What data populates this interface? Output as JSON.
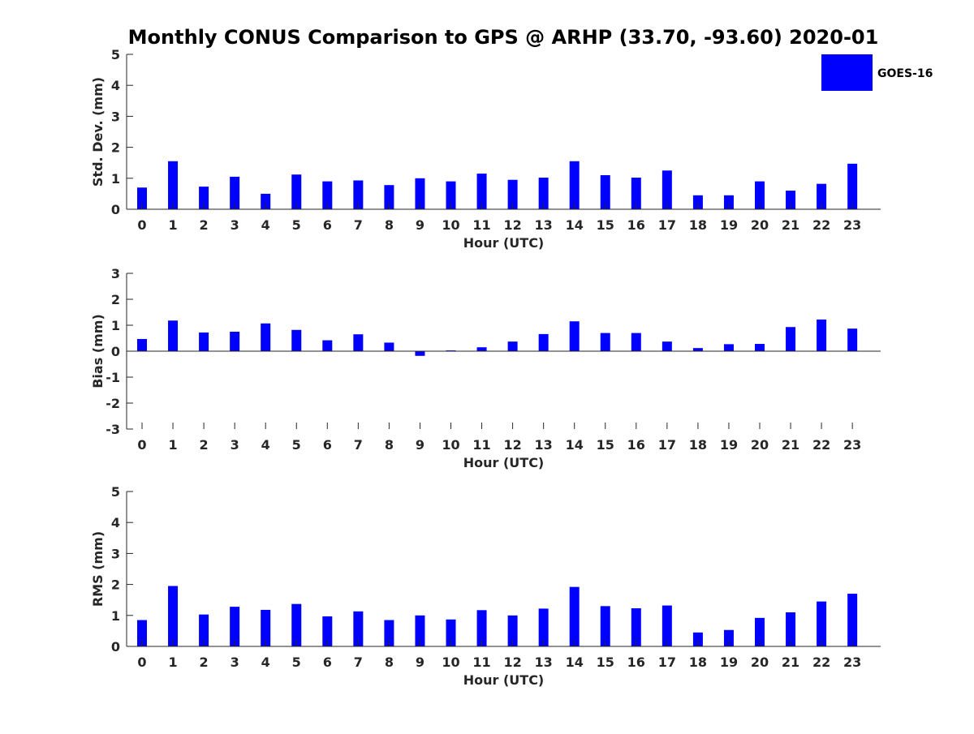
{
  "title": "Monthly CONUS Comparison to GPS @ ARHP (33.70, -93.60) 2020-01",
  "legend": {
    "label": "GOES-16",
    "color": "#0000ff",
    "placement": "top-right"
  },
  "chart_data": [
    {
      "type": "bar",
      "ylabel": "Std. Dev. (mm)",
      "xlabel": "Hour (UTC)",
      "ylim": [
        0,
        5
      ],
      "yticks": [
        0,
        1,
        2,
        3,
        4,
        5
      ],
      "categories": [
        "0",
        "1",
        "2",
        "3",
        "4",
        "5",
        "6",
        "7",
        "8",
        "9",
        "10",
        "11",
        "12",
        "13",
        "14",
        "15",
        "16",
        "17",
        "18",
        "19",
        "20",
        "21",
        "22",
        "23"
      ],
      "series": [
        {
          "name": "GOES-16",
          "values": [
            0.7,
            1.55,
            0.73,
            1.05,
            0.5,
            1.12,
            0.9,
            0.93,
            0.78,
            1.0,
            0.9,
            1.15,
            0.95,
            1.02,
            1.55,
            1.1,
            1.02,
            1.25,
            0.45,
            0.45,
            0.9,
            0.6,
            0.82,
            1.47
          ]
        }
      ],
      "grid": false
    },
    {
      "type": "bar",
      "ylabel": "Bias (mm)",
      "xlabel": "Hour (UTC)",
      "ylim": [
        -3,
        3
      ],
      "yticks": [
        -3,
        -2,
        -1,
        0,
        1,
        2,
        3
      ],
      "categories": [
        "0",
        "1",
        "2",
        "3",
        "4",
        "5",
        "6",
        "7",
        "8",
        "9",
        "10",
        "11",
        "12",
        "13",
        "14",
        "15",
        "16",
        "17",
        "18",
        "19",
        "20",
        "21",
        "22",
        "23"
      ],
      "series": [
        {
          "name": "GOES-16",
          "values": [
            0.47,
            1.18,
            0.72,
            0.75,
            1.07,
            0.82,
            0.42,
            0.65,
            0.33,
            -0.18,
            0.03,
            0.15,
            0.37,
            0.66,
            1.15,
            0.7,
            0.7,
            0.37,
            0.12,
            0.27,
            0.28,
            0.93,
            1.22,
            0.87
          ]
        }
      ],
      "grid": false
    },
    {
      "type": "bar",
      "ylabel": "RMS (mm)",
      "xlabel": "Hour (UTC)",
      "ylim": [
        0,
        5
      ],
      "yticks": [
        0,
        1,
        2,
        3,
        4,
        5
      ],
      "categories": [
        "0",
        "1",
        "2",
        "3",
        "4",
        "5",
        "6",
        "7",
        "8",
        "9",
        "10",
        "11",
        "12",
        "13",
        "14",
        "15",
        "16",
        "17",
        "18",
        "19",
        "20",
        "21",
        "22",
        "23"
      ],
      "series": [
        {
          "name": "GOES-16",
          "values": [
            0.85,
            1.95,
            1.03,
            1.28,
            1.18,
            1.37,
            0.97,
            1.13,
            0.85,
            1.0,
            0.87,
            1.17,
            1.0,
            1.22,
            1.92,
            1.3,
            1.23,
            1.32,
            0.45,
            0.53,
            0.92,
            1.1,
            1.45,
            1.7
          ]
        }
      ],
      "grid": false
    }
  ]
}
